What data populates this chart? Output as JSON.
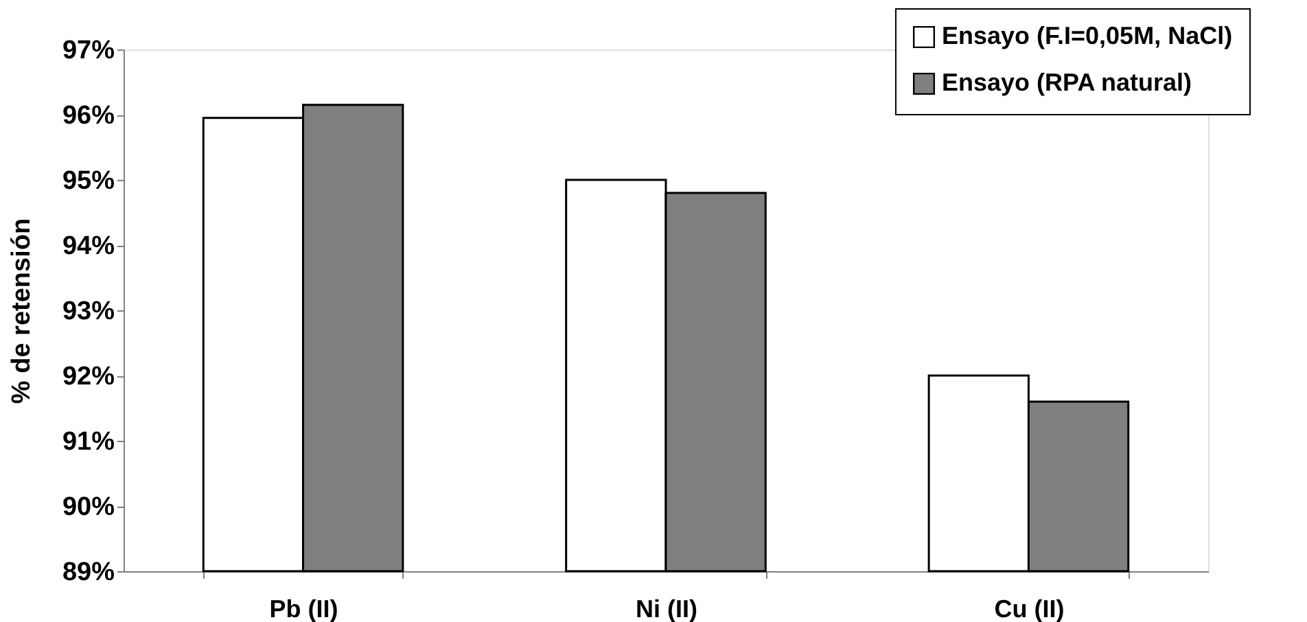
{
  "chart_data": {
    "type": "bar",
    "ylabel": "% de retensión",
    "categories": [
      "Pb (II)",
      "Ni (II)",
      "Cu (II)"
    ],
    "series": [
      {
        "name": "Ensayo (F.I=0,05M, NaCl)",
        "color": "#ffffff",
        "values": [
          95.95,
          95.0,
          92.0
        ]
      },
      {
        "name": "Ensayo (RPA natural)",
        "color": "#7f7f7f",
        "values": [
          96.15,
          94.8,
          91.6
        ]
      }
    ],
    "ylim": [
      89,
      97
    ],
    "yticks": [
      {
        "value": 89,
        "label": "89%"
      },
      {
        "value": 90,
        "label": "90%"
      },
      {
        "value": 91,
        "label": "91%"
      },
      {
        "value": 92,
        "label": "92%"
      },
      {
        "value": 93,
        "label": "93%"
      },
      {
        "value": 94,
        "label": "94%"
      },
      {
        "value": 95,
        "label": "95%"
      },
      {
        "value": 96,
        "label": "96%"
      },
      {
        "value": 97,
        "label": "97%"
      }
    ],
    "grid": false,
    "legend": "top right"
  }
}
